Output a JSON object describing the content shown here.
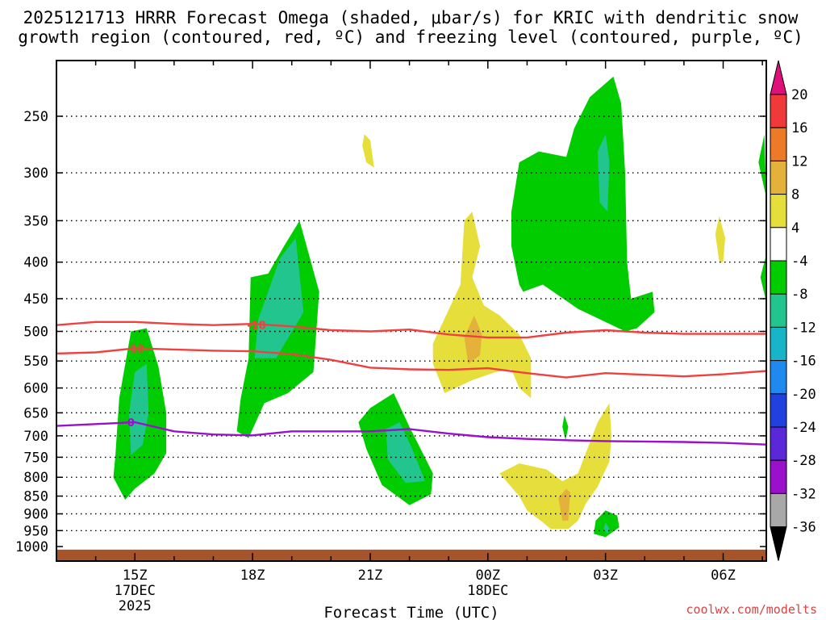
{
  "chart_data": {
    "type": "heatmap",
    "title_line1": "2025121713 HRRR Forecast Omega (shaded, μbar/s) for KRIC with dendritic snow",
    "title_line2": "growth region (contoured, red, ºC) and freezing level (contoured, purple, ºC)",
    "xlabel": "Forecast Time (UTC)",
    "watermark": "coolwx.com/modelts",
    "x_hours": [
      13.0,
      31.1
    ],
    "y_levels": [
      1000,
      950,
      900,
      850,
      800,
      750,
      700,
      650,
      600,
      550,
      500,
      450,
      400,
      350,
      300,
      250
    ],
    "y_tick_labels": [
      "1000",
      "950",
      "900",
      "850",
      "800",
      "750",
      "700",
      "650",
      "600",
      "550",
      "500",
      "450",
      "400",
      "350",
      "300",
      "250"
    ],
    "x_ticks": [
      {
        "hour": 15,
        "label": "15Z",
        "date": "17DEC",
        "year": "2025"
      },
      {
        "hour": 18,
        "label": "18Z"
      },
      {
        "hour": 21,
        "label": "21Z"
      },
      {
        "hour": 24,
        "label": "00Z",
        "date": "18DEC"
      },
      {
        "hour": 27,
        "label": "03Z"
      },
      {
        "hour": 30,
        "label": "06Z"
      }
    ],
    "colorbar": {
      "labels": [
        "20",
        "16",
        "12",
        "8",
        "4",
        "-4",
        "-8",
        "-12",
        "-16",
        "-20",
        "-24",
        "-28",
        "-32",
        "-36"
      ],
      "bins": [
        {
          "lo": 16,
          "hi": 20,
          "color": "#f03a3a"
        },
        {
          "lo": 12,
          "hi": 16,
          "color": "#ec7a26"
        },
        {
          "lo": 8,
          "hi": 12,
          "color": "#e4b23a"
        },
        {
          "lo": 4,
          "hi": 8,
          "color": "#e6de3a"
        },
        {
          "lo": -4,
          "hi": 4,
          "color": "#ffffff"
        },
        {
          "lo": -8,
          "hi": -4,
          "color": "#00cc00"
        },
        {
          "lo": -12,
          "hi": -8,
          "color": "#22c58e"
        },
        {
          "lo": -16,
          "hi": -12,
          "color": "#18b4c8"
        },
        {
          "lo": -20,
          "hi": -16,
          "color": "#1e8af0"
        },
        {
          "lo": -24,
          "hi": -20,
          "color": "#2040e0"
        },
        {
          "lo": -28,
          "hi": -24,
          "color": "#5a28d8"
        },
        {
          "lo": -32,
          "hi": -28,
          "color": "#9a10cc"
        },
        {
          "lo": -36,
          "hi": -32,
          "color": "#a8a8a8"
        }
      ],
      "top_arrow_color": "#e0107a",
      "bottom_arrow_color": "#000000"
    },
    "omega_regions": [
      {
        "name": "green-15z",
        "color": "#00cc00",
        "points": [
          [
            14.5,
            750
          ],
          [
            14.6,
            620
          ],
          [
            14.9,
            500
          ],
          [
            15.3,
            495
          ],
          [
            15.6,
            560
          ],
          [
            15.8,
            650
          ],
          [
            15.8,
            740
          ],
          [
            15.5,
            790
          ],
          [
            15.0,
            830
          ],
          [
            14.75,
            860
          ],
          [
            14.45,
            800
          ]
        ]
      },
      {
        "name": "teal-15z",
        "color": "#22c58e",
        "points": [
          [
            14.9,
            745
          ],
          [
            14.85,
            650
          ],
          [
            15.0,
            570
          ],
          [
            15.3,
            555
          ],
          [
            15.35,
            650
          ],
          [
            15.2,
            720
          ]
        ]
      },
      {
        "name": "green-18z",
        "color": "#00cc00",
        "points": [
          [
            17.6,
            690
          ],
          [
            17.7,
            620
          ],
          [
            17.9,
            545
          ],
          [
            17.95,
            420
          ],
          [
            18.4,
            415
          ],
          [
            18.8,
            380
          ],
          [
            19.2,
            350
          ],
          [
            19.7,
            440
          ],
          [
            19.55,
            570
          ],
          [
            18.9,
            610
          ],
          [
            18.3,
            630
          ],
          [
            17.9,
            705
          ]
        ]
      },
      {
        "name": "teal-18z",
        "color": "#22c58e",
        "points": [
          [
            18.05,
            545
          ],
          [
            18.15,
            480
          ],
          [
            18.7,
            395
          ],
          [
            19.1,
            370
          ],
          [
            19.3,
            470
          ],
          [
            18.6,
            545
          ]
        ]
      },
      {
        "name": "green-21z",
        "color": "#00cc00",
        "points": [
          [
            20.9,
            730
          ],
          [
            20.7,
            670
          ],
          [
            21.0,
            640
          ],
          [
            21.6,
            610
          ],
          [
            22.0,
            680
          ],
          [
            22.6,
            790
          ],
          [
            22.55,
            845
          ],
          [
            22.0,
            875
          ],
          [
            21.3,
            820
          ]
        ]
      },
      {
        "name": "teal-21z",
        "color": "#22c58e",
        "points": [
          [
            21.45,
            755
          ],
          [
            21.4,
            685
          ],
          [
            21.75,
            670
          ],
          [
            22.05,
            725
          ],
          [
            22.4,
            810
          ],
          [
            21.9,
            815
          ]
        ]
      },
      {
        "name": "yellow-23z",
        "color": "#e6de3a",
        "points": [
          [
            23.6,
            340
          ],
          [
            23.4,
            350
          ],
          [
            23.3,
            430
          ],
          [
            22.6,
            520
          ],
          [
            22.6,
            555
          ],
          [
            22.9,
            610
          ],
          [
            23.6,
            585
          ],
          [
            24.2,
            570
          ],
          [
            24.6,
            565
          ],
          [
            24.8,
            600
          ],
          [
            25.1,
            620
          ],
          [
            25.1,
            545
          ],
          [
            24.8,
            505
          ],
          [
            24.3,
            475
          ],
          [
            23.9,
            460
          ],
          [
            23.6,
            420
          ],
          [
            23.8,
            380
          ]
        ]
      },
      {
        "name": "orange-23z",
        "color": "#e4b23a",
        "points": [
          [
            23.5,
            555
          ],
          [
            23.8,
            540
          ],
          [
            23.85,
            505
          ],
          [
            23.65,
            475
          ],
          [
            23.4,
            510
          ]
        ]
      },
      {
        "name": "yellow-2130z",
        "color": "#e6de3a",
        "points": [
          [
            20.8,
            275
          ],
          [
            20.9,
            290
          ],
          [
            21.1,
            295
          ],
          [
            21.0,
            270
          ],
          [
            20.85,
            265
          ]
        ]
      },
      {
        "name": "green-0130z",
        "color": "#00cc00",
        "points": [
          [
            24.6,
            340
          ],
          [
            24.8,
            290
          ],
          [
            25.3,
            280
          ],
          [
            26.0,
            285
          ],
          [
            26.2,
            260
          ],
          [
            26.6,
            235
          ],
          [
            27.2,
            220
          ],
          [
            27.4,
            240
          ],
          [
            27.5,
            300
          ],
          [
            27.55,
            400
          ],
          [
            27.65,
            450
          ],
          [
            28.2,
            440
          ],
          [
            28.25,
            470
          ],
          [
            27.8,
            495
          ],
          [
            27.5,
            500
          ],
          [
            26.3,
            465
          ],
          [
            25.4,
            430
          ],
          [
            24.9,
            440
          ],
          [
            24.8,
            430
          ],
          [
            24.6,
            380
          ]
        ]
      },
      {
        "name": "teal-0230z",
        "color": "#22c58e",
        "points": [
          [
            26.85,
            330
          ],
          [
            26.8,
            280
          ],
          [
            27.0,
            265
          ],
          [
            27.1,
            290
          ],
          [
            27.05,
            340
          ]
        ]
      },
      {
        "name": "yellow-0230z",
        "color": "#e6de3a",
        "points": [
          [
            24.3,
            790
          ],
          [
            24.8,
            765
          ],
          [
            25.5,
            780
          ],
          [
            25.9,
            810
          ],
          [
            26.3,
            790
          ],
          [
            26.8,
            670
          ],
          [
            27.1,
            630
          ],
          [
            27.15,
            700
          ],
          [
            27.1,
            760
          ],
          [
            26.8,
            825
          ],
          [
            26.5,
            870
          ],
          [
            26.3,
            920
          ],
          [
            26.05,
            945
          ],
          [
            25.6,
            945
          ],
          [
            25.4,
            925
          ],
          [
            25.0,
            890
          ],
          [
            24.8,
            850
          ]
        ]
      },
      {
        "name": "orange-0230z",
        "color": "#e4b23a",
        "points": [
          [
            25.8,
            855
          ],
          [
            26.0,
            830
          ],
          [
            26.1,
            840
          ],
          [
            26.05,
            920
          ],
          [
            25.9,
            920
          ]
        ]
      },
      {
        "name": "green-0130z-small",
        "color": "#00cc00",
        "points": [
          [
            25.9,
            680
          ],
          [
            25.95,
            655
          ],
          [
            26.05,
            680
          ],
          [
            25.98,
            710
          ]
        ]
      },
      {
        "name": "green-03z-low",
        "color": "#00cc00",
        "points": [
          [
            26.7,
            960
          ],
          [
            26.75,
            920
          ],
          [
            27.0,
            890
          ],
          [
            27.3,
            905
          ],
          [
            27.35,
            940
          ],
          [
            27.0,
            970
          ]
        ]
      },
      {
        "name": "teal-03z-low",
        "color": "#22c58e",
        "points": [
          [
            26.95,
            945
          ],
          [
            27.0,
            925
          ],
          [
            27.1,
            945
          ],
          [
            27.05,
            960
          ]
        ]
      },
      {
        "name": "yellow-06z",
        "color": "#e6de3a",
        "points": [
          [
            29.8,
            365
          ],
          [
            29.9,
            345
          ],
          [
            30.05,
            370
          ],
          [
            30.0,
            400
          ],
          [
            29.9,
            400
          ]
        ]
      },
      {
        "name": "green-07z-edge-upper",
        "color": "#00cc00",
        "points": [
          [
            31.05,
            265
          ],
          [
            30.9,
            290
          ],
          [
            31.1,
            325
          ]
        ]
      },
      {
        "name": "green-07z-edge-lower",
        "color": "#00cc00",
        "points": [
          [
            31.1,
            390
          ],
          [
            30.95,
            420
          ],
          [
            31.1,
            455
          ]
        ]
      }
    ],
    "contours": [
      {
        "name": "-18 C isotherm",
        "color": "#f04040",
        "label": "-18",
        "label_at": [
          18.1,
          490
        ],
        "points": [
          [
            13.0,
            490
          ],
          [
            14.0,
            485
          ],
          [
            15.0,
            485
          ],
          [
            16.0,
            488
          ],
          [
            17.0,
            490
          ],
          [
            18.0,
            488
          ],
          [
            19.0,
            492
          ],
          [
            20.0,
            498
          ],
          [
            21.0,
            500
          ],
          [
            22.0,
            497
          ],
          [
            23.0,
            505
          ],
          [
            24.0,
            510
          ],
          [
            25.0,
            510
          ],
          [
            26.0,
            502
          ],
          [
            27.0,
            498
          ],
          [
            28.0,
            502
          ],
          [
            29.0,
            504
          ],
          [
            30.0,
            504
          ],
          [
            31.1,
            504
          ]
        ]
      },
      {
        "name": "-12 C isotherm",
        "color": "#f04040",
        "label": "-12",
        "label_at": [
          15.0,
          528
        ],
        "points": [
          [
            13.0,
            537
          ],
          [
            14.0,
            535
          ],
          [
            15.0,
            528
          ],
          [
            16.0,
            530
          ],
          [
            17.0,
            532
          ],
          [
            18.0,
            533
          ],
          [
            19.0,
            538
          ],
          [
            20.0,
            548
          ],
          [
            21.0,
            562
          ],
          [
            22.0,
            565
          ],
          [
            23.0,
            566
          ],
          [
            24.0,
            563
          ],
          [
            25.0,
            572
          ],
          [
            26.0,
            580
          ],
          [
            27.0,
            572
          ],
          [
            28.0,
            575
          ],
          [
            29.0,
            578
          ],
          [
            30.0,
            574
          ],
          [
            31.1,
            568
          ]
        ]
      },
      {
        "name": "0 C freezing level",
        "color": "#9a10cc",
        "label": "0",
        "label_at": [
          14.9,
          670
        ],
        "points": [
          [
            13.0,
            678
          ],
          [
            14.0,
            674
          ],
          [
            15.0,
            670
          ],
          [
            16.0,
            690
          ],
          [
            17.0,
            697
          ],
          [
            18.0,
            699
          ],
          [
            19.0,
            690
          ],
          [
            20.0,
            690
          ],
          [
            21.0,
            690
          ],
          [
            22.0,
            685
          ],
          [
            23.0,
            695
          ],
          [
            24.0,
            703
          ],
          [
            25.0,
            707
          ],
          [
            26.0,
            710
          ],
          [
            27.0,
            712
          ],
          [
            28.0,
            713
          ],
          [
            29.0,
            714
          ],
          [
            30.0,
            716
          ],
          [
            31.1,
            720
          ]
        ]
      }
    ],
    "ground": {
      "top_level": 1010,
      "color": "#a8542a"
    }
  }
}
